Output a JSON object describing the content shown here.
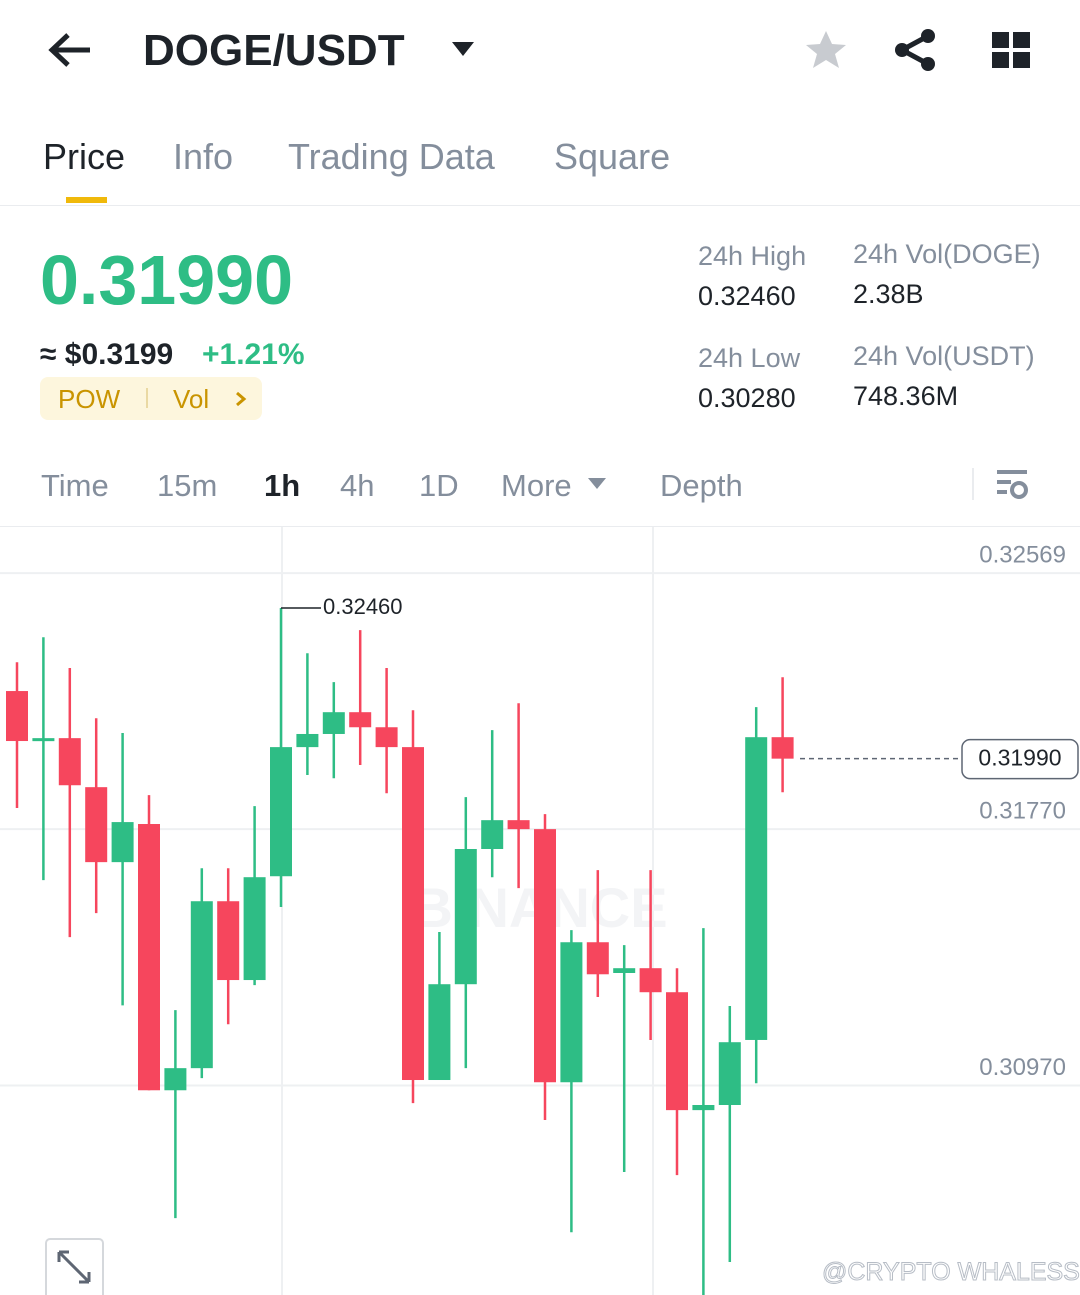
{
  "header": {
    "pair": "DOGE/USDT"
  },
  "tabs": [
    "Price",
    "Info",
    "Trading Data",
    "Square"
  ],
  "ticker": {
    "price": "0.31990",
    "approx": "≈ $0.3199",
    "change": "+1.21%",
    "tags": [
      "POW",
      "Vol"
    ]
  },
  "stats": [
    {
      "label": "24h High",
      "value": "0.32460"
    },
    {
      "label": "24h Vol(DOGE)",
      "value": "2.38B"
    },
    {
      "label": "24h Low",
      "value": "0.30280"
    },
    {
      "label": "24h Vol(USDT)",
      "value": "748.36M"
    }
  ],
  "intervals": [
    "Time",
    "15m",
    "1h",
    "4h",
    "1D",
    "More",
    "Depth"
  ],
  "watermark": "@CRYPTO WHALESS",
  "chart_data": {
    "type": "candlestick",
    "logo": "BINANCE",
    "categories": [
      null,
      null,
      null,
      null,
      null,
      null,
      null,
      null,
      null,
      null,
      null,
      null,
      null,
      null,
      null,
      null,
      null,
      null,
      null,
      null,
      null,
      null,
      null,
      null,
      null,
      null,
      null,
      null,
      null,
      null
    ],
    "open": [
      0.32201,
      0.32045,
      0.32054,
      0.31901,
      0.31667,
      0.31786,
      0.30955,
      0.31024,
      0.31545,
      0.31299,
      0.31623,
      0.32026,
      0.32067,
      0.32135,
      0.32088,
      0.32026,
      0.30987,
      0.31286,
      0.31708,
      0.31798,
      0.3177,
      0.3098,
      0.31417,
      0.31321,
      0.31336,
      0.31261,
      0.30893,
      0.30909,
      0.31112,
      0.32057
    ],
    "high": [
      0.32291,
      0.32369,
      0.32273,
      0.32116,
      0.3207,
      0.31876,
      0.31205,
      0.31648,
      0.31648,
      0.31842,
      0.3246,
      0.32319,
      0.32229,
      0.32391,
      0.32273,
      0.32141,
      0.31449,
      0.3187,
      0.32079,
      0.32163,
      0.31817,
      0.31455,
      0.31642,
      0.31408,
      0.31642,
      0.31336,
      0.31461,
      0.31218,
      0.32151,
      0.32244
    ],
    "low": [
      0.31836,
      0.31611,
      0.31433,
      0.31508,
      0.3122,
      0.30955,
      0.30556,
      0.30993,
      0.31161,
      0.31283,
      0.31527,
      0.31939,
      0.31929,
      0.3197,
      0.31882,
      0.30915,
      0.30987,
      0.31024,
      0.3162,
      0.31586,
      0.30862,
      0.30512,
      0.31246,
      0.307,
      0.31112,
      0.3069,
      0.30316,
      0.30419,
      0.30977,
      0.31885
    ],
    "close": [
      0.32045,
      0.32054,
      0.31907,
      0.31667,
      0.31792,
      0.30955,
      0.31024,
      0.31545,
      0.31299,
      0.3162,
      0.32026,
      0.32067,
      0.32135,
      0.32088,
      0.32026,
      0.30987,
      0.31286,
      0.31708,
      0.31798,
      0.3177,
      0.3098,
      0.31417,
      0.31317,
      0.31336,
      0.31261,
      0.30893,
      0.30909,
      0.31105,
      0.32057,
      0.3199
    ],
    "up_color": "#2ebd85",
    "down_color": "#f6465d",
    "ylim": [
      0.30316,
      0.32713
    ],
    "yticks": [
      0.32569,
      {
        "value": 0.3177,
        "label": "0.31770"
      },
      {
        "value": 0.3097,
        "label": "0.30970"
      }
    ],
    "grid": true,
    "high_marker": {
      "value": 0.3246,
      "label": "0.32460"
    },
    "last_price": {
      "value": 0.3199,
      "label": "0.31990"
    }
  }
}
